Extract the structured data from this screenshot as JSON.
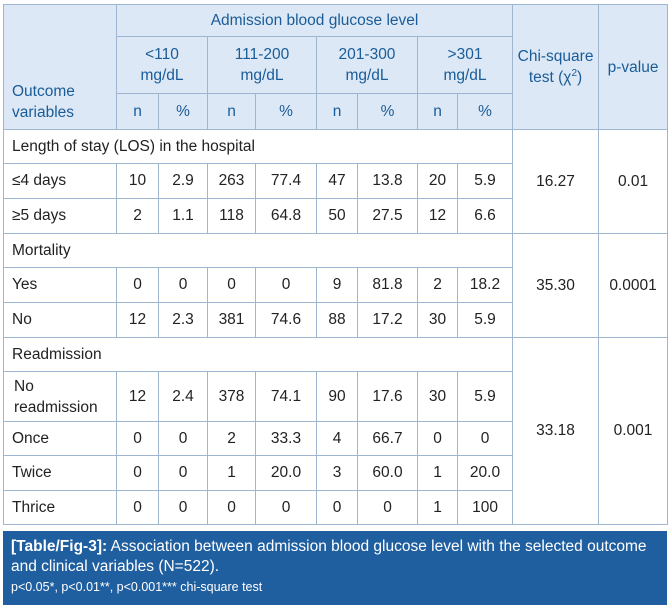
{
  "table": {
    "header": {
      "group_title": "Admission blood glucose level",
      "outcome_variables": "Outcome variables",
      "chi_square": "Chi-square test (χ",
      "chi_sup": "2",
      "chi_close": ")",
      "p_value": "p-value",
      "ranges": [
        {
          "line1": "<110",
          "line2": "mg/dL"
        },
        {
          "line1": "111-200",
          "line2": "mg/dL"
        },
        {
          "line1": "201-300",
          "line2": "mg/dL"
        },
        {
          "line1": ">301",
          "line2": "mg/dL"
        }
      ],
      "n": "n",
      "pct": "%"
    },
    "sections": [
      {
        "title": "Length of stay (LOS) in the hospital",
        "chi": "16.27",
        "p": "0.01",
        "rows": [
          {
            "label": "≤4 days",
            "values": [
              "10",
              "2.9",
              "263",
              "77.4",
              "47",
              "13.8",
              "20",
              "5.9"
            ]
          },
          {
            "label": "≥5 days",
            "values": [
              "2",
              "1.1",
              "118",
              "64.8",
              "50",
              "27.5",
              "12",
              "6.6"
            ]
          }
        ]
      },
      {
        "title": "Mortality",
        "chi": "35.30",
        "p": "0.0001",
        "rows": [
          {
            "label": "Yes",
            "values": [
              "0",
              "0",
              "0",
              "0",
              "9",
              "81.8",
              "2",
              "18.2"
            ]
          },
          {
            "label": "No",
            "values": [
              "12",
              "2.3",
              "381",
              "74.6",
              "88",
              "17.2",
              "30",
              "5.9"
            ]
          }
        ]
      },
      {
        "title": "Readmission",
        "chi": "33.18",
        "p": "0.001",
        "rows": [
          {
            "label": "No readmission",
            "label_l1": "No",
            "label_l2": "readmission",
            "values": [
              "12",
              "2.4",
              "378",
              "74.1",
              "90",
              "17.6",
              "30",
              "5.9"
            ]
          },
          {
            "label": "Once",
            "values": [
              "0",
              "0",
              "2",
              "33.3",
              "4",
              "66.7",
              "0",
              "0"
            ]
          },
          {
            "label": "Twice",
            "values": [
              "0",
              "0",
              "1",
              "20.0",
              "3",
              "60.0",
              "1",
              "20.0"
            ]
          },
          {
            "label": "Thrice",
            "values": [
              "0",
              "0",
              "0",
              "0",
              "0",
              "0",
              "1",
              "100"
            ]
          }
        ]
      }
    ]
  },
  "caption": {
    "label": "[Table/Fig-3]:",
    "text": " Association between admission blood glucose level with the selected outcome and clinical variables (N=522).",
    "note": "p<0.05*, p<0.01**, p<0.001*** chi-square test"
  },
  "colors": {
    "header_bg": "#dce8f5",
    "header_text": "#1a5c98",
    "border": "#9fb6d0",
    "caption_bg": "#1f5fa0"
  }
}
